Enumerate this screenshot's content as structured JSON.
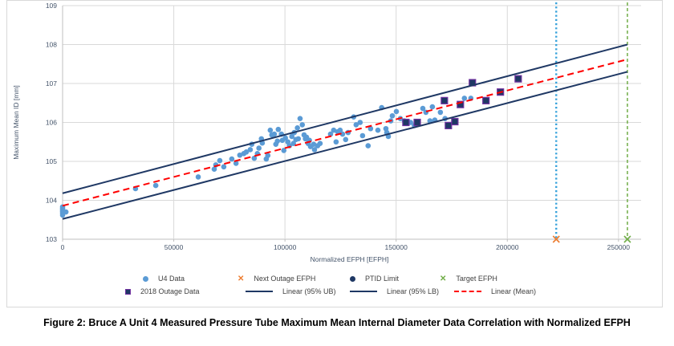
{
  "figure": {
    "caption": "Figure 2: Bruce A Unit 4 Measured Pressure Tube Maximum Mean Internal Diameter Data Correlation with Normalized EFPH"
  },
  "colors": {
    "u4_blue": "#5B9BD5",
    "navy": "#1F3864",
    "purple_edge": "#7030A0",
    "mean_red": "#FF0000",
    "next_outage_blue": "#36A2DB",
    "orange": "#ED7D31",
    "target_green": "#70AD47",
    "gridline": "#D9D9D9",
    "axis": "#BFBFBF",
    "tick_text": "#44546A",
    "legend_text": "#404040"
  },
  "chart_data": {
    "type": "scatter",
    "xlabel": "Normalized EFPH [EFPH]",
    "ylabel": "Maximum Mean ID [mm]",
    "xlim": [
      0,
      258000
    ],
    "ylim": [
      103,
      109
    ],
    "xticks": [
      0,
      50000,
      100000,
      150000,
      200000,
      250000
    ],
    "yticks": [
      103,
      104,
      105,
      106,
      107,
      108,
      109
    ],
    "grid": true,
    "legend_position": "bottom",
    "series": [
      {
        "name": "U4 Data",
        "type": "scatter",
        "marker": "circle",
        "color": "#5B9BD5",
        "points": [
          [
            0,
            103.62
          ],
          [
            0,
            103.67
          ],
          [
            0,
            103.71
          ],
          [
            0,
            103.75
          ],
          [
            0,
            103.79
          ],
          [
            0,
            103.83
          ],
          [
            1500,
            103.7
          ],
          [
            32800,
            104.3
          ],
          [
            41900,
            104.38
          ],
          [
            61000,
            104.6
          ],
          [
            68200,
            104.8
          ],
          [
            68900,
            104.91
          ],
          [
            70700,
            105.02
          ],
          [
            72500,
            104.86
          ],
          [
            76100,
            105.06
          ],
          [
            78000,
            104.95
          ],
          [
            79700,
            105.16
          ],
          [
            81500,
            105.2
          ],
          [
            82600,
            105.24
          ],
          [
            84400,
            105.3
          ],
          [
            85100,
            105.44
          ],
          [
            86200,
            105.08
          ],
          [
            87600,
            105.2
          ],
          [
            88300,
            105.34
          ],
          [
            89400,
            105.58
          ],
          [
            89800,
            105.47
          ],
          [
            91600,
            105.06
          ],
          [
            92300,
            105.15
          ],
          [
            93400,
            105.8
          ],
          [
            94100,
            105.68
          ],
          [
            95200,
            105.7
          ],
          [
            95900,
            105.44
          ],
          [
            96600,
            105.52
          ],
          [
            97000,
            105.82
          ],
          [
            98400,
            105.7
          ],
          [
            98800,
            105.54
          ],
          [
            99500,
            105.28
          ],
          [
            100200,
            105.6
          ],
          [
            101300,
            105.5
          ],
          [
            102000,
            105.4
          ],
          [
            103100,
            105.64
          ],
          [
            103800,
            105.46
          ],
          [
            104200,
            105.74
          ],
          [
            104900,
            105.56
          ],
          [
            105600,
            105.86
          ],
          [
            106000,
            105.58
          ],
          [
            106800,
            106.1
          ],
          [
            107800,
            105.94
          ],
          [
            108600,
            105.68
          ],
          [
            109200,
            105.58
          ],
          [
            109700,
            105.62
          ],
          [
            110400,
            105.46
          ],
          [
            111000,
            105.54
          ],
          [
            111500,
            105.38
          ],
          [
            112900,
            105.44
          ],
          [
            113300,
            105.3
          ],
          [
            114700,
            105.4
          ],
          [
            115800,
            105.46
          ],
          [
            120500,
            105.7
          ],
          [
            121900,
            105.8
          ],
          [
            123000,
            105.5
          ],
          [
            123700,
            105.76
          ],
          [
            124800,
            105.8
          ],
          [
            125900,
            105.7
          ],
          [
            127300,
            105.56
          ],
          [
            128400,
            105.74
          ],
          [
            130900,
            106.14
          ],
          [
            132000,
            105.94
          ],
          [
            133800,
            106.0
          ],
          [
            134900,
            105.66
          ],
          [
            137400,
            105.4
          ],
          [
            138500,
            105.84
          ],
          [
            141800,
            105.8
          ],
          [
            143500,
            106.38
          ],
          [
            145400,
            105.84
          ],
          [
            145800,
            105.74
          ],
          [
            146500,
            105.64
          ],
          [
            147600,
            106.04
          ],
          [
            148300,
            106.17
          ],
          [
            150100,
            106.28
          ],
          [
            151900,
            106.1
          ],
          [
            153700,
            106.04
          ],
          [
            156500,
            106.0
          ],
          [
            158200,
            105.92
          ],
          [
            162000,
            106.36
          ],
          [
            163400,
            106.26
          ],
          [
            165200,
            106.04
          ],
          [
            166300,
            106.4
          ],
          [
            167400,
            106.06
          ],
          [
            169900,
            106.26
          ],
          [
            172000,
            106.1
          ],
          [
            180700,
            106.62
          ],
          [
            183600,
            106.62
          ]
        ]
      },
      {
        "name": "2018 Outage Data",
        "type": "scatter",
        "marker": "square",
        "color": "#1F3864",
        "edge": "#7030A0",
        "points": [
          [
            154400,
            106.0
          ],
          [
            159500,
            106.0
          ],
          [
            171700,
            106.56
          ],
          [
            173500,
            105.92
          ],
          [
            176400,
            106.02
          ],
          [
            178900,
            106.46
          ],
          [
            184300,
            107.02
          ],
          [
            190400,
            106.56
          ],
          [
            196900,
            106.78
          ],
          [
            204900,
            107.12
          ]
        ]
      },
      {
        "name": "Next Outage EFPH",
        "type": "vline",
        "x": 222000,
        "color": "#36A2DB",
        "style": "dotted",
        "marker": "x",
        "marker_color": "#ED7D31",
        "marker_y": 103
      },
      {
        "name": "PTID Limit",
        "type": "scatter",
        "marker": "circle",
        "color": "#1F3864",
        "points": []
      },
      {
        "name": "Target EFPH",
        "type": "vline",
        "x": 254000,
        "color": "#70AD47",
        "style": "dashed",
        "marker": "x",
        "marker_color": "#70AD47",
        "marker_y": 103
      },
      {
        "name": "Linear (95% UB)",
        "type": "line",
        "color": "#1F3864",
        "style": "solid",
        "points": [
          [
            0,
            104.18
          ],
          [
            254000,
            108.0
          ]
        ]
      },
      {
        "name": "Linear (95% LB)",
        "type": "line",
        "color": "#1F3864",
        "style": "solid",
        "points": [
          [
            0,
            103.52
          ],
          [
            254000,
            107.3
          ]
        ]
      },
      {
        "name": "Linear (Mean)",
        "type": "line",
        "color": "#FF0000",
        "style": "dashed",
        "points": [
          [
            0,
            103.86
          ],
          [
            254000,
            107.62
          ]
        ]
      }
    ],
    "legend": {
      "rows": [
        [
          {
            "marker": "circle",
            "color": "#5B9BD5",
            "label": "U4 Data",
            "name": "legend-u4-data"
          },
          {
            "marker": "x",
            "color": "#ED7D31",
            "label": "Next Outage EFPH",
            "name": "legend-next-outage-efph"
          },
          {
            "marker": "circle",
            "color": "#1F3864",
            "label": "PTID Limit",
            "name": "legend-ptid-limit"
          },
          {
            "marker": "x",
            "color": "#70AD47",
            "label": "Target EFPH",
            "name": "legend-target-efph"
          }
        ],
        [
          {
            "marker": "square",
            "color": "#1F3864",
            "label": "2018 Outage Data",
            "name": "legend-2018-outage-data"
          },
          {
            "marker": "line",
            "color": "#1F3864",
            "label": "Linear (95% UB)",
            "name": "legend-linear-95-ub"
          },
          {
            "marker": "line",
            "color": "#1F3864",
            "label": "Linear (95% LB)",
            "name": "legend-linear-95-lb"
          },
          {
            "marker": "dash",
            "color": "#FF0000",
            "label": "Linear (Mean)",
            "name": "legend-linear-mean"
          }
        ]
      ]
    }
  }
}
